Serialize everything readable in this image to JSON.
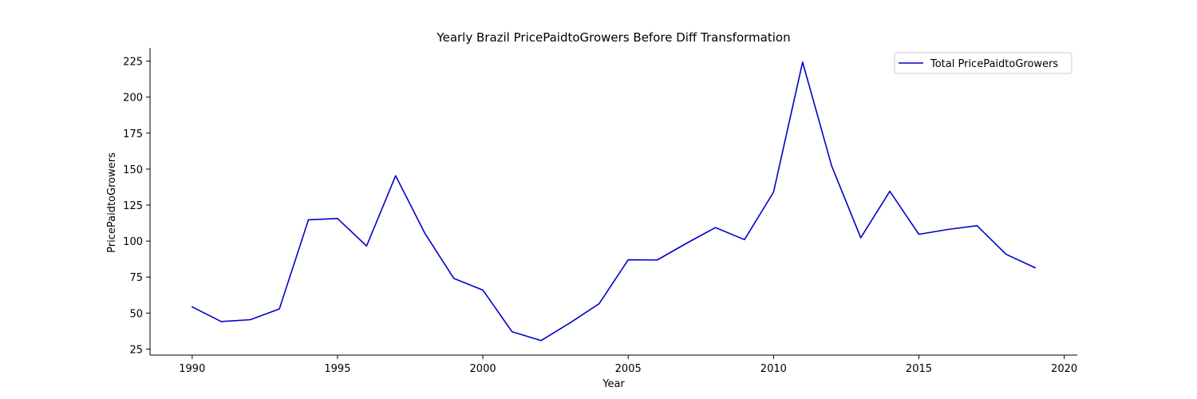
{
  "chart_data": {
    "type": "line",
    "title": "Yearly Brazil PricePaidtoGrowers Before Diff Transformation",
    "xlabel": "Year",
    "ylabel": "PricePaidtoGrowers",
    "xlim": [
      1988.55,
      2020.45
    ],
    "ylim": [
      20.8,
      234.2
    ],
    "x_ticks": [
      1990,
      1995,
      2000,
      2005,
      2010,
      2015,
      2020
    ],
    "y_ticks": [
      25,
      50,
      75,
      100,
      125,
      150,
      175,
      200,
      225
    ],
    "grid": false,
    "legend_position": "top-right",
    "series": [
      {
        "name": "Total PricePaidtoGrowers",
        "color": "#0000cc",
        "x": [
          1990,
          1991,
          1992,
          1993,
          1994,
          1995,
          1996,
          1997,
          1998,
          1999,
          2000,
          2001,
          2002,
          2003,
          2004,
          2005,
          2006,
          2007,
          2008,
          2009,
          2010,
          2011,
          2012,
          2013,
          2014,
          2015,
          2016,
          2017,
          2018,
          2019
        ],
        "y": [
          54.3,
          44.1,
          45.4,
          52.9,
          114.8,
          115.7,
          96.6,
          145.4,
          105.6,
          74.1,
          66.0,
          37.1,
          30.9,
          43.2,
          56.5,
          87.0,
          86.9,
          98.4,
          109.4,
          101.0,
          134.0,
          224.3,
          152.2,
          102.3,
          134.6,
          104.7,
          108.1,
          110.7,
          90.8,
          81.5
        ]
      }
    ]
  }
}
